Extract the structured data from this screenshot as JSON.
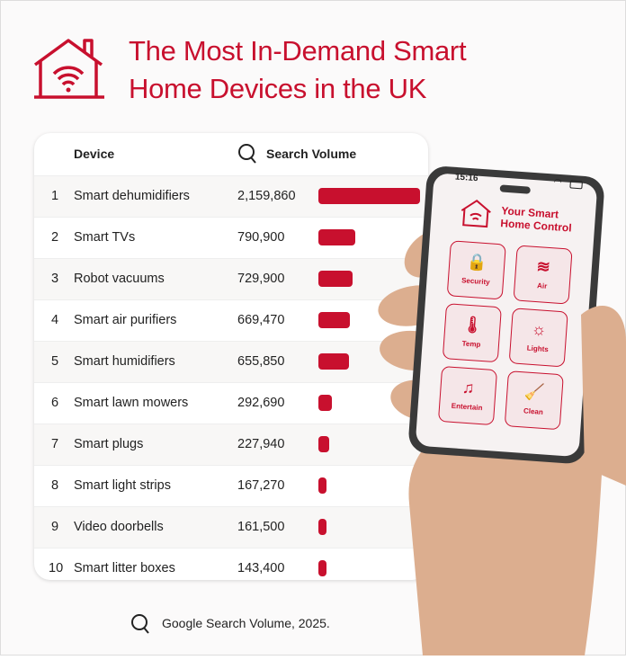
{
  "title_line1": "The Most In-Demand Smart",
  "title_line2": "Home Devices in the UK",
  "table": {
    "col_device": "Device",
    "col_volume": "Search Volume"
  },
  "chart_data": {
    "type": "bar",
    "orientation": "horizontal",
    "title": "The Most In-Demand Smart Home Devices in the UK",
    "columns": [
      "Device",
      "Search Volume"
    ],
    "ranks": [
      1,
      2,
      3,
      4,
      5,
      6,
      7,
      8,
      9,
      10
    ],
    "categories": [
      "Smart dehumidifiers",
      "Smart TVs",
      "Robot vacuums",
      "Smart air purifiers",
      "Smart humidifiers",
      "Smart lawn mowers",
      "Smart plugs",
      "Smart light strips",
      "Video doorbells",
      "Smart litter boxes"
    ],
    "values": [
      2159860,
      790900,
      729900,
      669470,
      655850,
      292690,
      227940,
      167270,
      161500,
      143400
    ],
    "value_labels": [
      "2,159,860",
      "790,900",
      "729,900",
      "669,470",
      "655,850",
      "292,690",
      "227,940",
      "167,270",
      "161,500",
      "143,400"
    ],
    "bar_color": "#c8102e"
  },
  "footer": "Google Search Volume, 2025.",
  "phone": {
    "time": "15:16",
    "app_title_line1": "Your Smart",
    "app_title_line2": "Home Control",
    "tiles": [
      "Security",
      "Air",
      "Temp",
      "Lights",
      "Entertain",
      "Clean"
    ]
  },
  "colors": {
    "accent": "#c8102e",
    "skin": "#dcae8f",
    "phone_frame": "#3a3a3a"
  }
}
